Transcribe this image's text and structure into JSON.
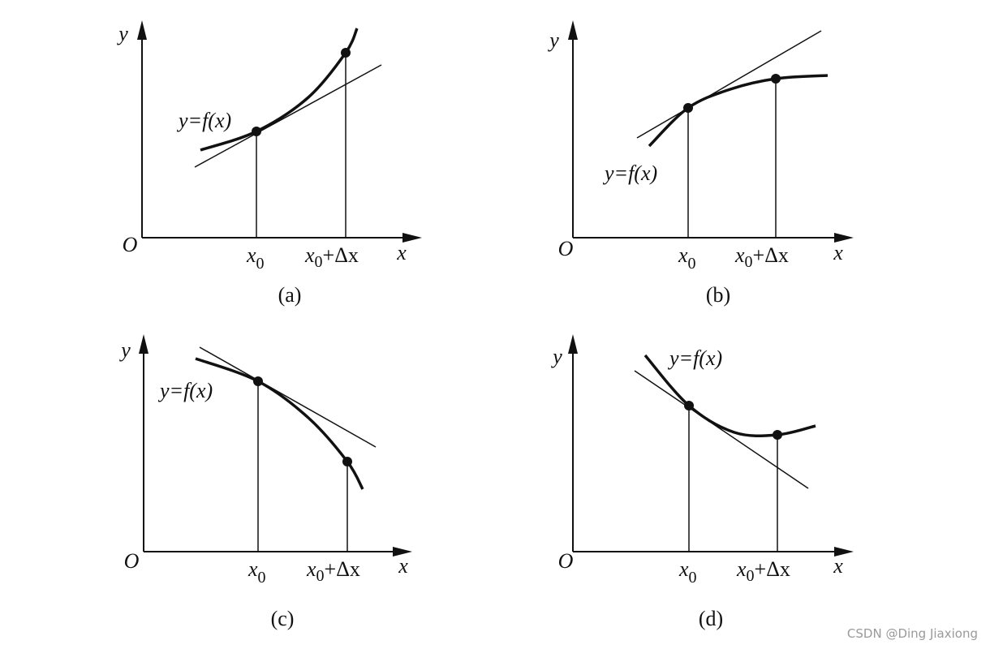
{
  "panels": [
    {
      "caption": "(a)",
      "y_axis": "y",
      "x_axis": "x",
      "origin": "O",
      "curve_label": "y=f(x)",
      "x0": {
        "base": "x",
        "sub": "0"
      },
      "x1": {
        "base": "x",
        "sub": "0",
        "rest": "+Δx"
      }
    },
    {
      "caption": "(b)",
      "y_axis": "y",
      "x_axis": "x",
      "origin": "O",
      "curve_label": "y=f(x)",
      "x0": {
        "base": "x",
        "sub": "0"
      },
      "x1": {
        "base": "x",
        "sub": "0",
        "rest": "+Δx"
      }
    },
    {
      "caption": "(c)",
      "y_axis": "y",
      "x_axis": "x",
      "origin": "O",
      "curve_label": "y=f(x)",
      "x0": {
        "base": "x",
        "sub": "0"
      },
      "x1": {
        "base": "x",
        "sub": "0",
        "rest": "+Δx"
      }
    },
    {
      "caption": "(d)",
      "y_axis": "y",
      "x_axis": "x",
      "origin": "O",
      "curve_label": "y=f(x)",
      "x0": {
        "base": "x",
        "sub": "0"
      },
      "x1": {
        "base": "x",
        "sub": "0",
        "rest": "+Δx"
      }
    }
  ],
  "watermark": "CSDN @Ding Jiaxiong"
}
